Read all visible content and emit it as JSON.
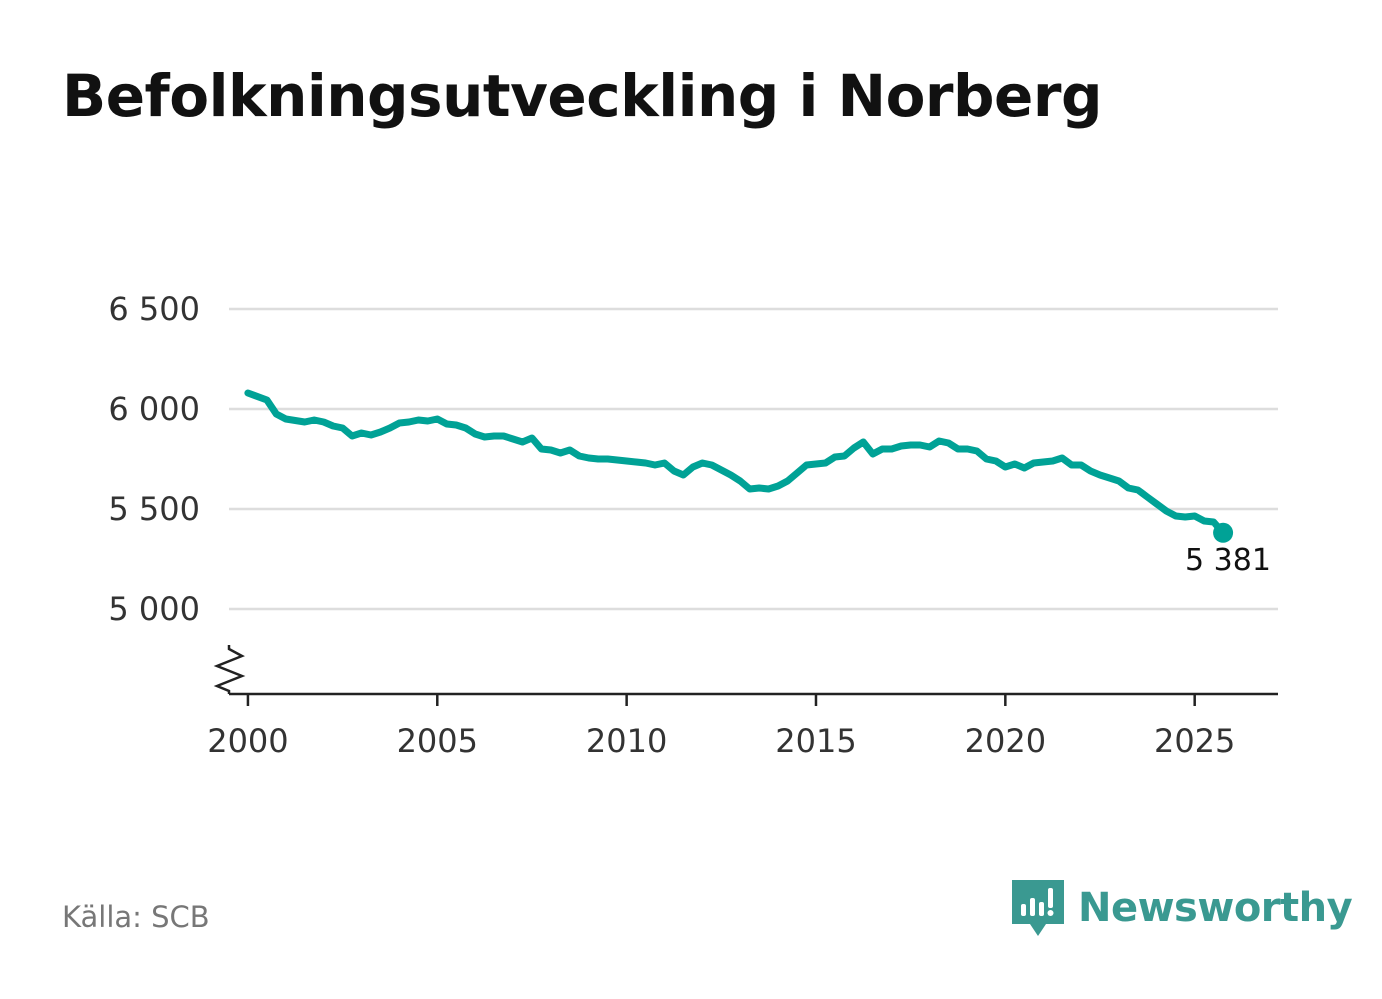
{
  "title": "Befolkningsutveckling i Norberg",
  "source": "Källa: SCB",
  "brand": {
    "name": "Newsworthy",
    "icon": "newsworthy-logo-icon",
    "color": "#3a9991"
  },
  "chart_data": {
    "type": "line",
    "title": "Befolkningsutveckling i Norberg",
    "xlabel": "",
    "ylabel": "",
    "xlim": [
      1999.5,
      2027.2
    ],
    "ylim": [
      4575,
      6500
    ],
    "y_break": true,
    "grid": true,
    "line_color": "#00a296",
    "x_ticks": [
      2000,
      2005,
      2010,
      2015,
      2020,
      2025
    ],
    "x_tick_labels": [
      "2000",
      "2005",
      "2010",
      "2015",
      "2020",
      "2025"
    ],
    "y_ticks": [
      5000,
      5500,
      6000,
      6500
    ],
    "y_tick_labels": [
      "5 000",
      "5 500",
      "6 000",
      "6 500"
    ],
    "last_value_label": "5 381",
    "series": [
      {
        "name": "Norberg",
        "x": [
          2000.0,
          2000.5,
          2000.75,
          2001.0,
          2001.5,
          2001.75,
          2002.0,
          2002.25,
          2002.5,
          2002.75,
          2003.0,
          2003.25,
          2003.5,
          2003.75,
          2004.0,
          2004.25,
          2004.5,
          2004.75,
          2005.0,
          2005.25,
          2005.5,
          2005.75,
          2006.0,
          2006.25,
          2006.5,
          2006.75,
          2007.0,
          2007.25,
          2007.5,
          2007.75,
          2008.0,
          2008.25,
          2008.5,
          2008.75,
          2009.0,
          2009.25,
          2009.5,
          2009.75,
          2010.0,
          2010.25,
          2010.5,
          2010.75,
          2011.0,
          2011.25,
          2011.5,
          2011.75,
          2012.0,
          2012.25,
          2012.5,
          2012.75,
          2013.0,
          2013.25,
          2013.5,
          2013.75,
          2014.0,
          2014.25,
          2014.5,
          2014.75,
          2015.0,
          2015.25,
          2015.5,
          2015.75,
          2016.0,
          2016.25,
          2016.5,
          2016.75,
          2017.0,
          2017.25,
          2017.5,
          2017.75,
          2018.0,
          2018.25,
          2018.5,
          2018.75,
          2019.0,
          2019.25,
          2019.5,
          2019.75,
          2020.0,
          2020.25,
          2020.5,
          2020.75,
          2021.0,
          2021.25,
          2021.5,
          2021.75,
          2022.0,
          2022.25,
          2022.5,
          2022.75,
          2023.0,
          2023.25,
          2023.5,
          2023.75,
          2024.0,
          2024.25,
          2024.5,
          2024.75,
          2025.0,
          2025.25,
          2025.5,
          2025.75
        ],
        "values": [
          6080,
          6045,
          5975,
          5950,
          5935,
          5945,
          5935,
          5915,
          5905,
          5865,
          5880,
          5870,
          5885,
          5905,
          5930,
          5935,
          5945,
          5940,
          5950,
          5925,
          5920,
          5905,
          5875,
          5860,
          5865,
          5865,
          5850,
          5835,
          5855,
          5800,
          5795,
          5780,
          5795,
          5765,
          5755,
          5750,
          5750,
          5745,
          5740,
          5735,
          5730,
          5720,
          5730,
          5690,
          5670,
          5710,
          5730,
          5720,
          5695,
          5670,
          5640,
          5600,
          5605,
          5600,
          5615,
          5640,
          5680,
          5720,
          5725,
          5730,
          5760,
          5765,
          5805,
          5835,
          5775,
          5800,
          5800,
          5815,
          5820,
          5820,
          5810,
          5840,
          5830,
          5800,
          5800,
          5790,
          5750,
          5740,
          5710,
          5725,
          5705,
          5730,
          5735,
          5740,
          5755,
          5720,
          5720,
          5690,
          5670,
          5655,
          5640,
          5605,
          5595,
          5560,
          5525,
          5490,
          5465,
          5460,
          5465,
          5440,
          5435,
          5381
        ]
      }
    ]
  }
}
